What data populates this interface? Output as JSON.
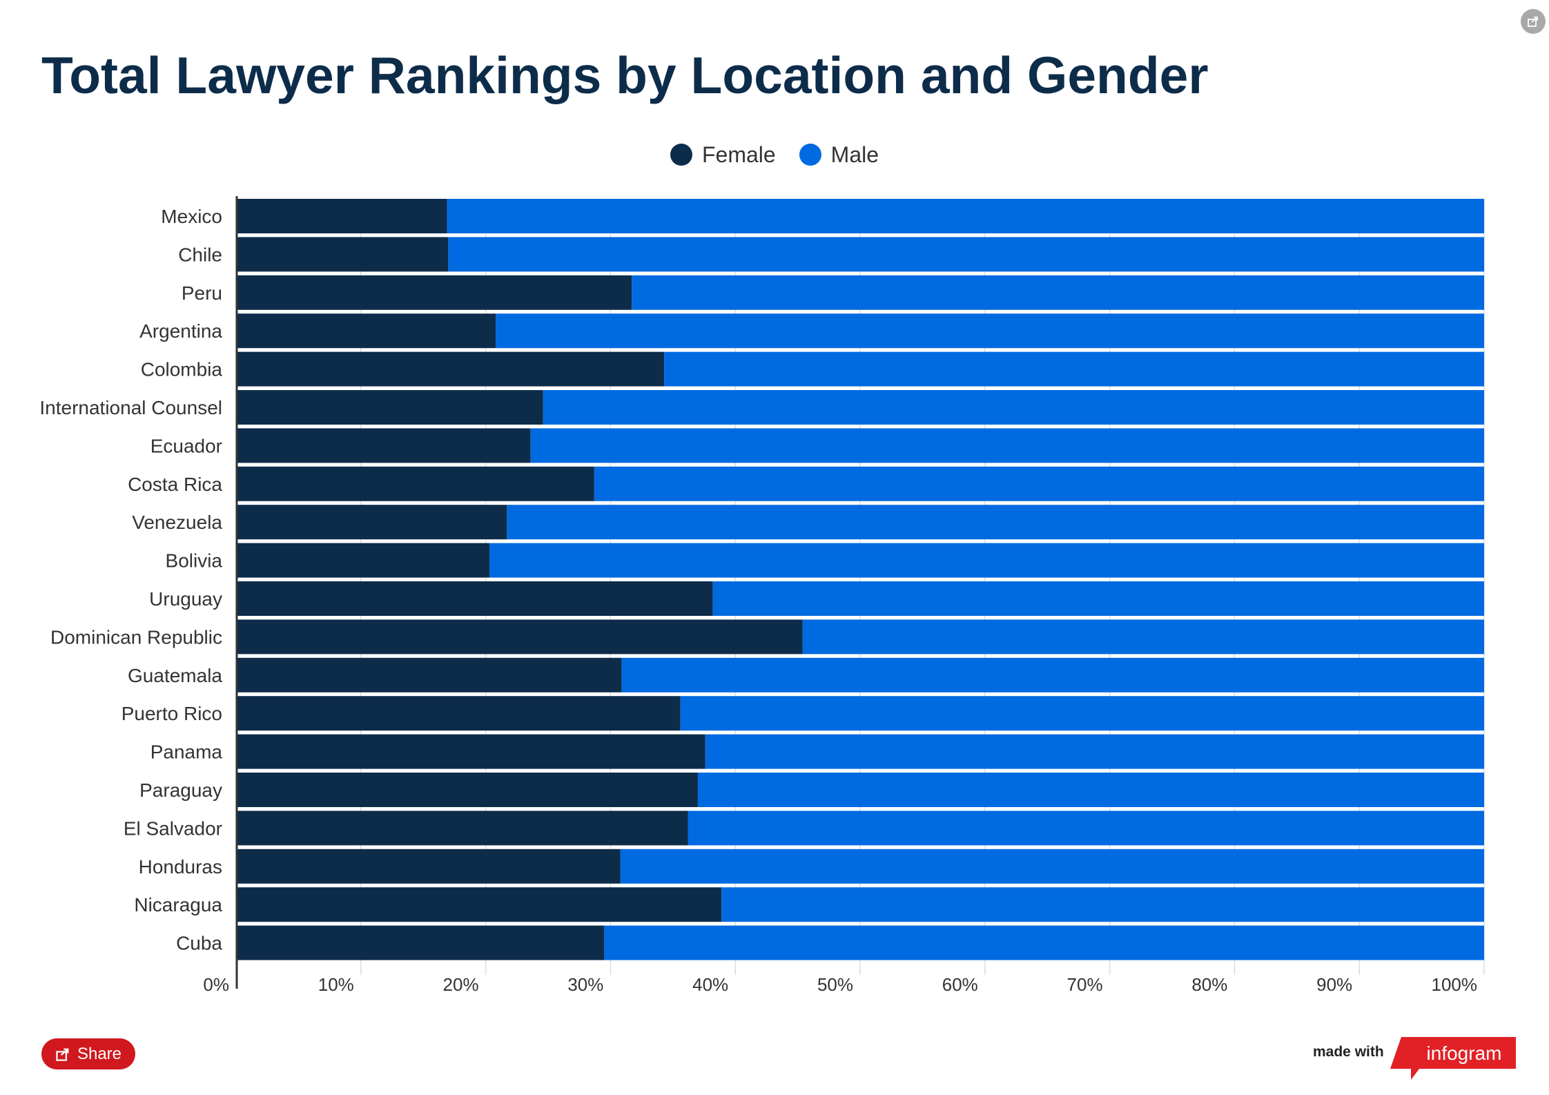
{
  "title": "Total Lawyer Rankings by Location and Gender",
  "footer": {
    "share_label": "Share",
    "made_with": "made with",
    "brand": "infogram"
  },
  "chart_data": {
    "type": "bar",
    "orientation": "horizontal",
    "stacked": "percent",
    "title": "Total Lawyer Rankings by Location and Gender",
    "xlabel": "",
    "ylabel": "",
    "xlim": [
      0,
      100
    ],
    "x_ticks": [
      "0%",
      "10%",
      "20%",
      "30%",
      "40%",
      "50%",
      "60%",
      "70%",
      "80%",
      "90%",
      "100%"
    ],
    "grid": true,
    "legend": "top-center",
    "categories": [
      "Mexico",
      "Chile",
      "Peru",
      "Argentina",
      "Colombia",
      "International Counsel",
      "Ecuador",
      "Costa Rica",
      "Venezuela",
      "Bolivia",
      "Uruguay",
      "Dominican Republic",
      "Guatemala",
      "Puerto Rico",
      "Panama",
      "Paraguay",
      "El Salvador",
      "Honduras",
      "Nicaragua",
      "Cuba"
    ],
    "series": [
      {
        "name": "Female",
        "color": "#0d2c4a",
        "values": [
          16.9,
          17.0,
          31.7,
          20.8,
          34.3,
          24.6,
          23.6,
          28.7,
          21.7,
          20.3,
          38.2,
          45.4,
          30.9,
          35.6,
          37.6,
          37.0,
          36.2,
          30.8,
          38.9,
          29.5
        ]
      },
      {
        "name": "Male",
        "color": "#006ae1",
        "values": [
          83.1,
          83.0,
          68.3,
          79.2,
          65.7,
          75.4,
          76.4,
          71.3,
          78.3,
          79.7,
          61.8,
          54.6,
          69.1,
          64.4,
          62.4,
          63.0,
          63.8,
          69.2,
          61.1,
          70.5
        ]
      }
    ]
  }
}
